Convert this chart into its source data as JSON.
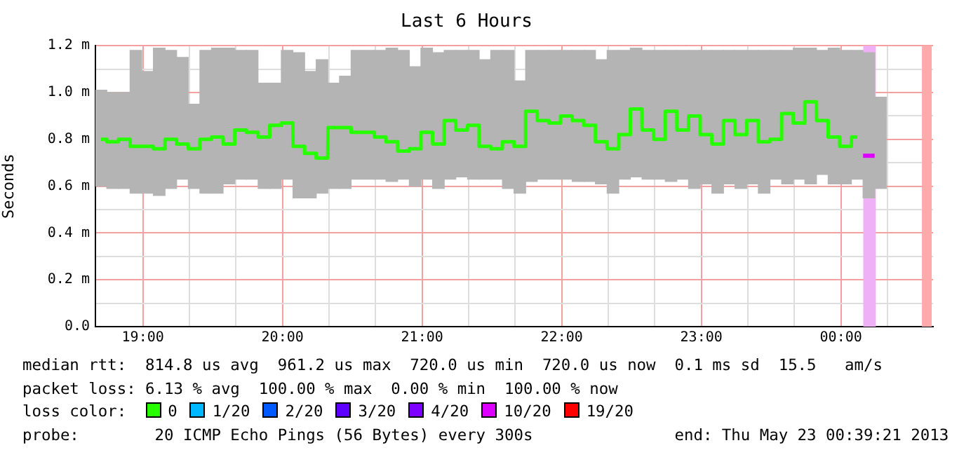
{
  "chart_data": {
    "type": "step",
    "title": "Last 6 Hours",
    "ylabel": "Seconds",
    "legend_title": "loss color:",
    "legend": "bottom",
    "grid": true,
    "xlim": [
      18.66,
      24.66
    ],
    "xticks": [
      {
        "value": 19,
        "label": "19:00"
      },
      {
        "value": 19.333,
        "label": null
      },
      {
        "value": 19.667,
        "label": null
      },
      {
        "value": 20,
        "label": "20:00"
      },
      {
        "value": 20.333,
        "label": null
      },
      {
        "value": 20.667,
        "label": null
      },
      {
        "value": 21,
        "label": "21:00"
      },
      {
        "value": 21.333,
        "label": null
      },
      {
        "value": 21.667,
        "label": null
      },
      {
        "value": 22,
        "label": "22:00"
      },
      {
        "value": 22.333,
        "label": null
      },
      {
        "value": 22.667,
        "label": null
      },
      {
        "value": 23,
        "label": "23:00"
      },
      {
        "value": 23.333,
        "label": null
      },
      {
        "value": 23.667,
        "label": null
      },
      {
        "value": 24,
        "label": "00:00"
      },
      {
        "value": 24.333,
        "label": null
      }
    ],
    "ylim": [
      0,
      1.2
    ],
    "yticks": [
      {
        "value": 0,
        "label": "0.0"
      },
      {
        "value": 0.1,
        "label": null
      },
      {
        "value": 0.2,
        "label": "0.2 m"
      },
      {
        "value": 0.3,
        "label": null
      },
      {
        "value": 0.4,
        "label": "0.4 m"
      },
      {
        "value": 0.5,
        "label": null
      },
      {
        "value": 0.6,
        "label": "0.6 m"
      },
      {
        "value": 0.7,
        "label": null
      },
      {
        "value": 0.8,
        "label": "0.8 m"
      },
      {
        "value": 0.9,
        "label": null
      },
      {
        "value": 1.0,
        "label": "1.0 m"
      },
      {
        "value": 1.1,
        "label": null
      },
      {
        "value": 1.2,
        "label": "1.2 m"
      }
    ],
    "x": [
      18.7,
      18.783,
      18.867,
      18.95,
      19.033,
      19.117,
      19.2,
      19.283,
      19.367,
      19.45,
      19.533,
      19.617,
      19.7,
      19.783,
      19.867,
      19.95,
      20.033,
      20.117,
      20.2,
      20.283,
      20.367,
      20.45,
      20.533,
      20.617,
      20.7,
      20.783,
      20.867,
      20.95,
      21.033,
      21.117,
      21.2,
      21.283,
      21.367,
      21.45,
      21.533,
      21.617,
      21.7,
      21.783,
      21.867,
      21.95,
      22.033,
      22.117,
      22.2,
      22.283,
      22.367,
      22.45,
      22.533,
      22.617,
      22.7,
      22.783,
      22.867,
      22.95,
      23.033,
      23.117,
      23.2,
      23.283,
      23.367,
      23.45,
      23.533,
      23.617,
      23.7,
      23.783,
      23.867,
      23.95,
      24.033,
      24.117,
      24.2,
      24.283
    ],
    "series": [
      {
        "type": "bar",
        "color": "#b4b4b4",
        "base": [
          0.6,
          0.59,
          0.59,
          0.57,
          0.57,
          0.56,
          0.59,
          0.63,
          0.59,
          0.57,
          0.57,
          0.61,
          0.63,
          0.63,
          0.59,
          0.59,
          0.63,
          0.55,
          0.55,
          0.57,
          0.59,
          0.59,
          0.63,
          0.63,
          0.63,
          0.62,
          0.63,
          0.6,
          0.63,
          0.59,
          0.63,
          0.64,
          0.63,
          0.63,
          0.63,
          0.59,
          0.57,
          0.62,
          0.63,
          0.63,
          0.63,
          0.62,
          0.62,
          0.61,
          0.57,
          0.63,
          0.64,
          0.63,
          0.63,
          0.62,
          0.63,
          0.59,
          0.61,
          0.57,
          0.61,
          0.59,
          0.61,
          0.57,
          0.63,
          0.61,
          0.63,
          0.61,
          0.65,
          0.61,
          0.61,
          0.63,
          0.55,
          0.59
        ],
        "values": [
          0.41,
          0.41,
          0.41,
          0.61,
          0.52,
          0.63,
          0.59,
          0.52,
          0.36,
          0.61,
          0.62,
          0.58,
          0.55,
          0.55,
          0.45,
          0.45,
          0.55,
          0.62,
          0.54,
          0.57,
          0.45,
          0.48,
          0.55,
          0.55,
          0.55,
          0.57,
          0.55,
          0.51,
          0.56,
          0.58,
          0.55,
          0.54,
          0.55,
          0.51,
          0.55,
          0.59,
          0.48,
          0.56,
          0.55,
          0.55,
          0.55,
          0.56,
          0.56,
          0.53,
          0.61,
          0.55,
          0.55,
          0.55,
          0.55,
          0.56,
          0.55,
          0.59,
          0.57,
          0.61,
          0.57,
          0.59,
          0.57,
          0.61,
          0.55,
          0.57,
          0.56,
          0.58,
          0.53,
          0.58,
          0.57,
          0.55,
          0.62,
          0.39
        ]
      },
      {
        "name": "0",
        "color": "#26ff00",
        "values": [
          0.8,
          0.79,
          0.8,
          0.77,
          0.77,
          0.76,
          0.8,
          0.78,
          0.76,
          0.8,
          0.81,
          0.78,
          0.84,
          0.83,
          0.81,
          0.86,
          0.87,
          0.77,
          0.74,
          0.72,
          0.85,
          0.85,
          0.83,
          0.83,
          0.81,
          0.79,
          0.75,
          0.76,
          0.83,
          0.78,
          0.88,
          0.84,
          0.86,
          0.77,
          0.76,
          0.79,
          0.77,
          0.92,
          0.88,
          0.87,
          0.9,
          0.88,
          0.86,
          0.79,
          0.76,
          0.82,
          0.93,
          0.84,
          0.8,
          0.92,
          0.84,
          0.9,
          0.82,
          0.78,
          0.88,
          0.82,
          0.88,
          0.79,
          0.8,
          0.91,
          0.87,
          0.96,
          0.88,
          0.81,
          0.77,
          0.81,
          null,
          null
        ]
      },
      {
        "name": "1/20",
        "color": "#00b8ff",
        "values": [
          null,
          null,
          null,
          null,
          null,
          null,
          null,
          null,
          null,
          null,
          null,
          null,
          null,
          null,
          null,
          null,
          null,
          null,
          null,
          null,
          null,
          null,
          null,
          null,
          null,
          null,
          null,
          null,
          null,
          null,
          null,
          null,
          null,
          null,
          null,
          null,
          null,
          null,
          null,
          null,
          null,
          null,
          null,
          null,
          null,
          null,
          null,
          null,
          null,
          null,
          null,
          null,
          null,
          null,
          null,
          null,
          null,
          null,
          null,
          null,
          null,
          null,
          null,
          null,
          null,
          null,
          null,
          null
        ]
      },
      {
        "name": "2/20",
        "color": "#0059ff",
        "values": [
          null,
          null,
          null,
          null,
          null,
          null,
          null,
          null,
          null,
          null,
          null,
          null,
          null,
          null,
          null,
          null,
          null,
          null,
          null,
          null,
          null,
          null,
          null,
          null,
          null,
          null,
          null,
          null,
          null,
          null,
          null,
          null,
          null,
          null,
          null,
          null,
          null,
          null,
          null,
          null,
          null,
          null,
          null,
          null,
          null,
          null,
          null,
          null,
          null,
          null,
          null,
          null,
          null,
          null,
          null,
          null,
          null,
          null,
          null,
          null,
          null,
          null,
          null,
          null,
          null,
          null,
          null,
          null
        ]
      },
      {
        "name": "3/20",
        "color": "#5e00ff",
        "values": [
          null,
          null,
          null,
          null,
          null,
          null,
          null,
          null,
          null,
          null,
          null,
          null,
          null,
          null,
          null,
          null,
          null,
          null,
          null,
          null,
          null,
          null,
          null,
          null,
          null,
          null,
          null,
          null,
          null,
          null,
          null,
          null,
          null,
          null,
          null,
          null,
          null,
          null,
          null,
          null,
          null,
          null,
          null,
          null,
          null,
          null,
          null,
          null,
          null,
          null,
          null,
          null,
          null,
          null,
          null,
          null,
          null,
          null,
          null,
          null,
          null,
          null,
          null,
          null,
          null,
          null,
          null,
          null
        ]
      },
      {
        "name": "4/20",
        "color": "#7e00ff",
        "values": [
          null,
          null,
          null,
          null,
          null,
          null,
          null,
          null,
          null,
          null,
          null,
          null,
          null,
          null,
          null,
          null,
          null,
          null,
          null,
          null,
          null,
          null,
          null,
          null,
          null,
          null,
          null,
          null,
          null,
          null,
          null,
          null,
          null,
          null,
          null,
          null,
          null,
          null,
          null,
          null,
          null,
          null,
          null,
          null,
          null,
          null,
          null,
          null,
          null,
          null,
          null,
          null,
          null,
          null,
          null,
          null,
          null,
          null,
          null,
          null,
          null,
          null,
          null,
          null,
          null,
          null,
          null,
          null
        ]
      },
      {
        "name": "10/20",
        "color": "#dd00ff",
        "marker": "square",
        "values": [
          null,
          null,
          null,
          null,
          null,
          null,
          null,
          null,
          null,
          null,
          null,
          null,
          null,
          null,
          null,
          null,
          null,
          null,
          null,
          null,
          null,
          null,
          null,
          null,
          null,
          null,
          null,
          null,
          null,
          null,
          null,
          null,
          null,
          null,
          null,
          null,
          null,
          null,
          null,
          null,
          null,
          null,
          null,
          null,
          null,
          null,
          null,
          null,
          null,
          null,
          null,
          null,
          null,
          null,
          null,
          null,
          null,
          null,
          null,
          null,
          null,
          null,
          null,
          null,
          null,
          null,
          0.73,
          null
        ]
      },
      {
        "name": "19/20",
        "color": "#ff0000",
        "values": [
          null,
          null,
          null,
          null,
          null,
          null,
          null,
          null,
          null,
          null,
          null,
          null,
          null,
          null,
          null,
          null,
          null,
          null,
          null,
          null,
          null,
          null,
          null,
          null,
          null,
          null,
          null,
          null,
          null,
          null,
          null,
          null,
          null,
          null,
          null,
          null,
          null,
          null,
          null,
          null,
          null,
          null,
          null,
          null,
          null,
          null,
          null,
          null,
          null,
          null,
          null,
          null,
          null,
          null,
          null,
          null,
          null,
          null,
          null,
          null,
          null,
          null,
          null,
          null,
          null,
          null,
          null,
          null
        ]
      }
    ],
    "bands": [
      {
        "axis": "x",
        "from": 24.16,
        "to": 24.25,
        "color": "#f0b0f8"
      },
      {
        "axis": "x",
        "from": 24.58,
        "to": 24.65,
        "color": "#ffaaaa"
      }
    ],
    "annotations": [
      "median rtt:  814.8 us avg  961.2 us max  720.0 us min  720.0 us now  0.1 ms sd  15.5   am/s",
      "packet loss: 6.13 % avg  100.00 % max  0.00 % min  100.00 % now",
      "probe:        20 ICMP Echo Pings (56 Bytes) every 300s               end: Thu May 23 00:39:21 2013"
    ]
  }
}
